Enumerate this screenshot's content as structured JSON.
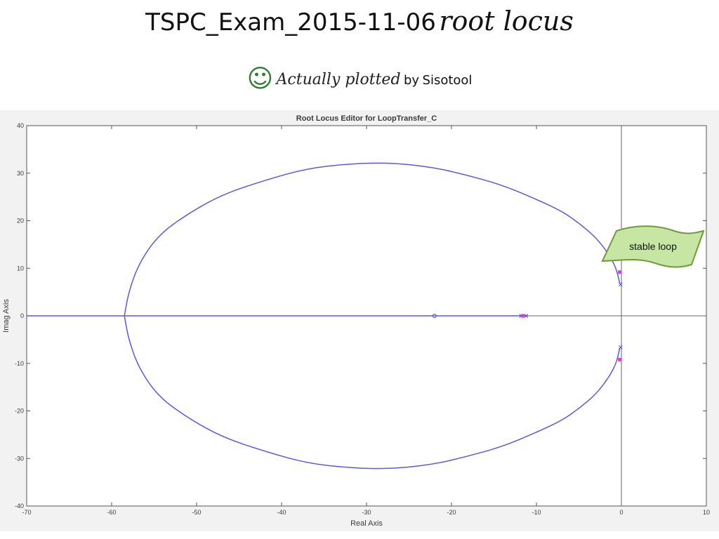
{
  "slide": {
    "title_main": "TSPC_Exam_2015-11-06",
    "title_italic": "root locus",
    "subtitle_icon": "smiley-icon",
    "subtitle_icon_glyph": "☺",
    "subtitle_italic": "Actually plotted",
    "subtitle_by": "by",
    "subtitle_tool": "Sisotool"
  },
  "chart_data": {
    "type": "line",
    "title": "Root Locus Editor for LoopTransfer_C",
    "xlabel": "Real Axis",
    "ylabel": "Imag Axis",
    "xlim": [
      -70,
      10
    ],
    "ylim": [
      -40,
      40
    ],
    "xticks": [
      -70,
      -60,
      -50,
      -40,
      -30,
      -20,
      -10,
      0,
      10
    ],
    "yticks": [
      -40,
      -30,
      -20,
      -10,
      0,
      10,
      20,
      30,
      40
    ],
    "grid": false,
    "series": [
      {
        "values_upper": [
          [
            -0.2,
            6.8
          ],
          [
            -0.6,
            10
          ],
          [
            -1.5,
            13
          ],
          [
            -3,
            16.5
          ],
          [
            -5,
            19.5
          ],
          [
            -7,
            22
          ],
          [
            -10,
            24.5
          ],
          [
            -14,
            27.5
          ],
          [
            -18,
            29.5
          ],
          [
            -22,
            31.2
          ],
          [
            -27,
            32.2
          ],
          [
            -32,
            32
          ],
          [
            -37,
            31
          ],
          [
            -42,
            28.5
          ],
          [
            -47,
            25.5
          ],
          [
            -51,
            21.5
          ],
          [
            -54.5,
            17
          ],
          [
            -56.8,
            11
          ],
          [
            -58,
            5
          ],
          [
            -58.5,
            0
          ]
        ],
        "values_lower": [
          [
            -0.2,
            -6.8
          ],
          [
            -0.6,
            -10
          ],
          [
            -1.5,
            -13
          ],
          [
            -3,
            -16.5
          ],
          [
            -5,
            -19.5
          ],
          [
            -7,
            -22
          ],
          [
            -10,
            -24.5
          ],
          [
            -14,
            -27.5
          ],
          [
            -18,
            -29.5
          ],
          [
            -22,
            -31.2
          ],
          [
            -27,
            -32.2
          ],
          [
            -32,
            -32
          ],
          [
            -37,
            -31
          ],
          [
            -42,
            -28.5
          ],
          [
            -47,
            -25.5
          ],
          [
            -51,
            -21.5
          ],
          [
            -54.5,
            -17
          ],
          [
            -56.8,
            -11
          ],
          [
            -58,
            -5
          ],
          [
            -58.5,
            0
          ]
        ],
        "real_axis_branch": [
          -70,
          -11.1
        ]
      }
    ],
    "poles": [
      [
        -0.1,
        6.6
      ],
      [
        -0.1,
        -6.6
      ],
      [
        -11.2,
        0
      ],
      [
        -11.8,
        0
      ]
    ],
    "zeros": [
      [
        -22,
        0
      ]
    ],
    "closed_loop_poles": [
      [
        -0.2,
        9.2
      ],
      [
        -0.2,
        -9.2
      ],
      [
        -11.6,
        0
      ]
    ],
    "colors": {
      "locus": "#5b5bd6",
      "pole": "#4a4ae0",
      "closed_loop": "#e040c8",
      "axes": "#555555",
      "plot_bg": "#ffffff",
      "frame_bg": "#f2f2f2"
    }
  },
  "annotation": {
    "label": "stable loop",
    "fill": "#c7e6a4",
    "stroke": "#6e9a3a"
  }
}
